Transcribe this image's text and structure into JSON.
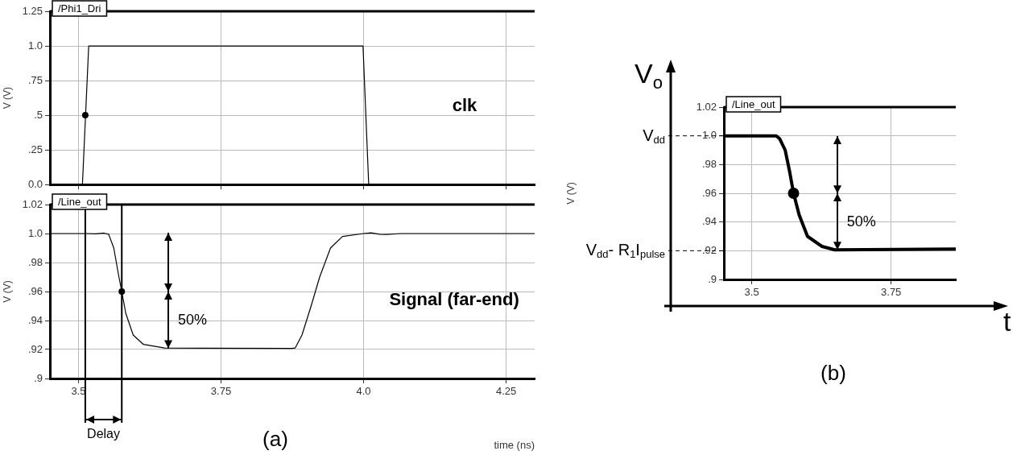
{
  "chart_data": [
    {
      "type": "line",
      "title": "/Phi1_Dri",
      "ylabel": "V (V)",
      "xlim": [
        3.45,
        4.3
      ],
      "ylim": [
        0,
        1.25
      ],
      "xticks": [
        {
          "value": 3.5,
          "label": null
        },
        {
          "value": 3.75,
          "label": null
        },
        {
          "value": 4.0,
          "label": null
        },
        {
          "value": 4.25,
          "label": null
        }
      ],
      "yticks": [
        {
          "value": 0,
          "label": "0.0"
        },
        {
          "value": 0.25,
          "label": ".25"
        },
        {
          "value": 0.5,
          "label": ".5"
        },
        {
          "value": 0.75,
          "label": ".75"
        },
        {
          "value": 1.0,
          "label": "1.0"
        },
        {
          "value": 1.25,
          "label": "1.25"
        }
      ],
      "tick_labels": "y",
      "grid": true,
      "marker": "none",
      "series": [
        {
          "name": "clk",
          "type": "line",
          "color": "#000000",
          "x": [
            3.45,
            3.507,
            3.518,
            3.999,
            4.009,
            4.3
          ],
          "values": [
            0,
            0,
            1.0,
            1.0,
            0,
            0
          ]
        },
        {
          "type": "scatter",
          "marker": "circle",
          "color": "#000000",
          "x": [
            3.512
          ],
          "values": [
            0.5
          ]
        }
      ]
    },
    {
      "type": "line",
      "title": "/Line_out",
      "xlabel": "time (ns)",
      "ylabel": "V (V)",
      "xlim": [
        3.45,
        4.3
      ],
      "ylim": [
        0.9,
        1.02
      ],
      "xticks": [
        3.5,
        3.75,
        {
          "value": 4.0,
          "label": "4.0"
        },
        4.25
      ],
      "yticks": [
        {
          "value": 0.9,
          "label": ".9"
        },
        {
          "value": 0.92,
          "label": ".92"
        },
        {
          "value": 0.94,
          "label": ".94"
        },
        {
          "value": 0.96,
          "label": ".96"
        },
        {
          "value": 0.98,
          "label": ".98"
        },
        {
          "value": 1.0,
          "label": "1.0"
        },
        {
          "value": 1.02,
          "label": "1.02"
        }
      ],
      "grid": true,
      "marker": "none",
      "series": [
        {
          "name": "Signal (far-end)",
          "type": "line",
          "color": "#000000",
          "x": [
            3.45,
            3.515,
            3.53,
            3.545,
            3.553,
            3.562,
            3.571,
            3.576,
            3.583,
            3.596,
            3.614,
            3.651,
            3.874,
            3.88,
            3.892,
            3.908,
            3.923,
            3.942,
            3.963,
            4.0,
            4.013,
            4.028,
            4.04,
            4.065,
            4.3
          ],
          "values": [
            1.0,
            1.0,
            0.9998,
            1.0003,
            0.9995,
            0.99,
            0.97,
            0.96,
            0.945,
            0.93,
            0.9235,
            0.921,
            0.9208,
            0.921,
            0.93,
            0.95,
            0.97,
            0.99,
            0.998,
            1.0,
            1.0005,
            0.9995,
            0.9994,
            1.0,
            1.0
          ]
        },
        {
          "type": "scatter",
          "marker": "circle",
          "color": "#000000",
          "x": [
            3.576
          ],
          "values": [
            0.96
          ]
        }
      ],
      "ref_lines": [
        {
          "axis": "x",
          "value": 3.512
        },
        {
          "axis": "x",
          "value": 3.576
        }
      ],
      "annotations": [
        "50%",
        "Delay",
        "(a)"
      ]
    },
    {
      "type": "line",
      "title": "/Line_out",
      "ylabel": "V (V)",
      "xlim": [
        3.45,
        3.866
      ],
      "ylim": [
        0.9,
        1.02
      ],
      "xticks": [
        3.5,
        3.75
      ],
      "yticks": [
        {
          "value": 0.9,
          "label": ".9"
        },
        {
          "value": 0.92,
          "label": ".92"
        },
        {
          "value": 0.94,
          "label": ".94"
        },
        {
          "value": 0.96,
          "label": ".96"
        },
        {
          "value": 0.98,
          "label": ".98"
        },
        {
          "value": 1.0,
          "label": "1.0"
        },
        {
          "value": 1.02,
          "label": "1.02"
        }
      ],
      "grid": true,
      "marker": "none",
      "series": [
        {
          "type": "line",
          "color": "#000000",
          "x": [
            3.45,
            3.544,
            3.55,
            3.56,
            3.568,
            3.575,
            3.585,
            3.6,
            3.626,
            3.649,
            3.866
          ],
          "values": [
            1.0,
            1.0,
            0.998,
            0.99,
            0.975,
            0.96,
            0.945,
            0.93,
            0.923,
            0.9206,
            0.9212
          ]
        },
        {
          "type": "scatter",
          "marker": "circle",
          "color": "#000000",
          "x": [
            3.575
          ],
          "values": [
            0.96
          ]
        }
      ],
      "ref_lines": [
        {
          "axis": "y",
          "value": 1.0,
          "label": "V$_{dd}$",
          "line_style": "dashed"
        },
        {
          "axis": "y",
          "value": 0.92,
          "label": "V$_{dd}$- R$_{1}$I$_{pulse}$",
          "line_style": "dashed"
        }
      ],
      "annotations": [
        "50%",
        "V$_{o}$",
        "t",
        "(b)"
      ]
    }
  ]
}
